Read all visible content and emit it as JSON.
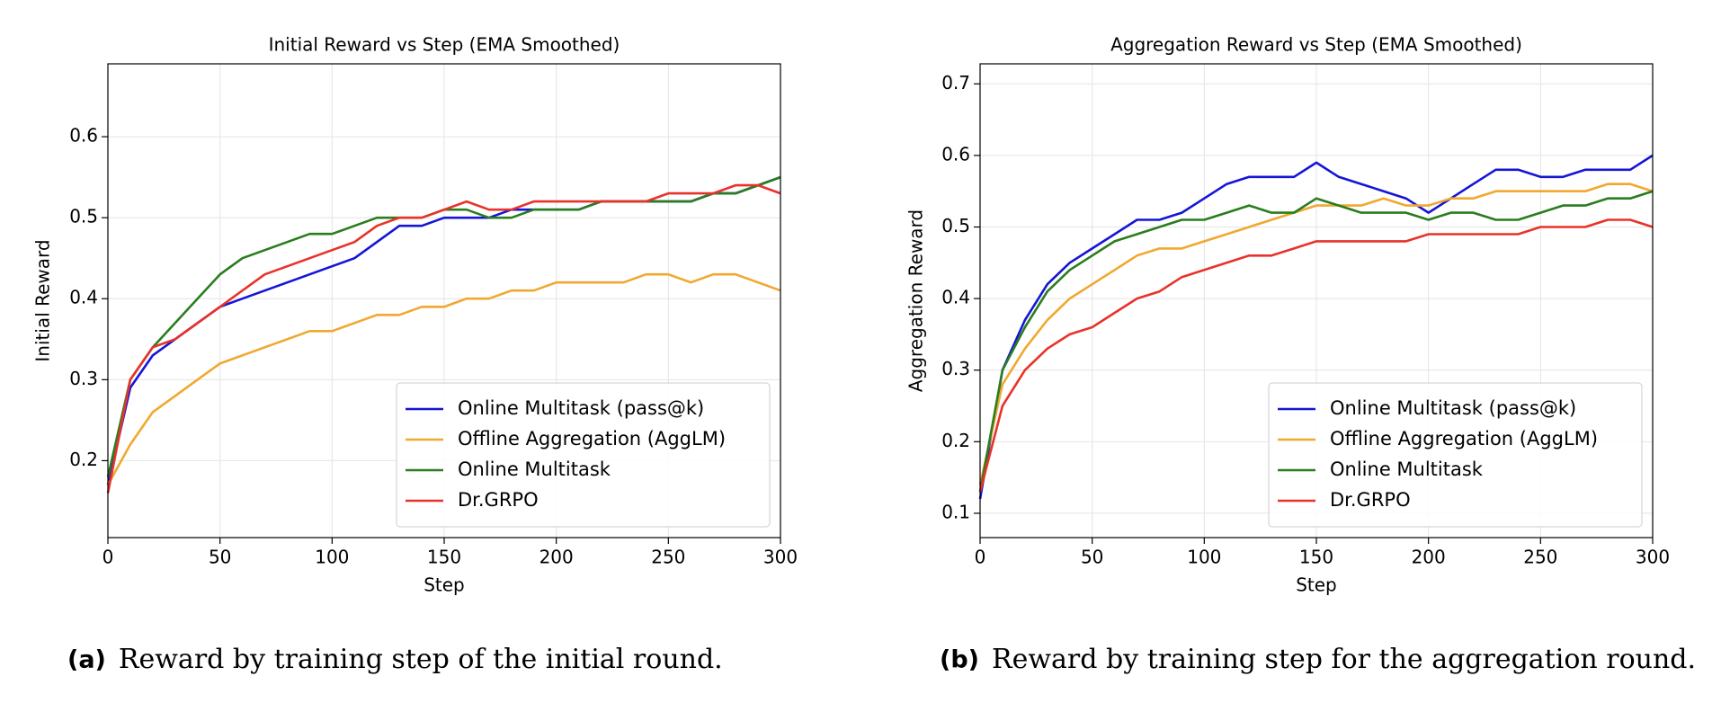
{
  "chart_data": [
    {
      "type": "line",
      "title": "Initial Reward vs Step (EMA Smoothed)",
      "xlabel": "Step",
      "ylabel": "Initial Reward",
      "x": [
        0,
        10,
        20,
        30,
        40,
        50,
        60,
        70,
        80,
        90,
        100,
        110,
        120,
        130,
        140,
        150,
        160,
        170,
        180,
        190,
        200,
        210,
        220,
        230,
        240,
        250,
        260,
        270,
        280,
        290,
        300
      ],
      "xlim": [
        0,
        300
      ],
      "xticks": [
        0,
        50,
        100,
        150,
        200,
        250,
        300
      ],
      "ylim": [
        0.105,
        0.69
      ],
      "yticks": [
        0.2,
        0.3,
        0.4,
        0.5,
        0.6
      ],
      "grid": true,
      "legend": "lower right",
      "series": [
        {
          "name": "Online Multitask (pass@k)",
          "color": "#1515d6",
          "values": [
            0.17,
            0.29,
            0.33,
            0.35,
            0.37,
            0.39,
            0.4,
            0.41,
            0.42,
            0.43,
            0.44,
            0.45,
            0.47,
            0.49,
            0.49,
            0.5,
            0.5,
            0.5,
            0.51,
            0.51,
            0.51,
            0.51,
            0.52,
            0.52,
            0.52,
            0.52,
            0.52,
            0.53,
            0.53,
            0.54,
            0.55
          ]
        },
        {
          "name": "Offline Aggregation (AggLM)",
          "color": "#f0a830",
          "values": [
            0.17,
            0.22,
            0.26,
            0.28,
            0.3,
            0.32,
            0.33,
            0.34,
            0.35,
            0.36,
            0.36,
            0.37,
            0.38,
            0.38,
            0.39,
            0.39,
            0.4,
            0.4,
            0.41,
            0.41,
            0.42,
            0.42,
            0.42,
            0.42,
            0.43,
            0.43,
            0.42,
            0.43,
            0.43,
            0.42,
            0.41
          ]
        },
        {
          "name": "Online Multitask",
          "color": "#2a7d1e",
          "values": [
            0.18,
            0.3,
            0.34,
            0.37,
            0.4,
            0.43,
            0.45,
            0.46,
            0.47,
            0.48,
            0.48,
            0.49,
            0.5,
            0.5,
            0.5,
            0.51,
            0.51,
            0.5,
            0.5,
            0.51,
            0.51,
            0.51,
            0.52,
            0.52,
            0.52,
            0.52,
            0.52,
            0.53,
            0.53,
            0.54,
            0.55
          ]
        },
        {
          "name": "Dr.GRPO",
          "color": "#e8332a",
          "values": [
            0.16,
            0.3,
            0.34,
            0.35,
            0.37,
            0.39,
            0.41,
            0.43,
            0.44,
            0.45,
            0.46,
            0.47,
            0.49,
            0.5,
            0.5,
            0.51,
            0.52,
            0.51,
            0.51,
            0.52,
            0.52,
            0.52,
            0.52,
            0.52,
            0.52,
            0.53,
            0.53,
            0.53,
            0.54,
            0.54,
            0.53
          ]
        }
      ],
      "caption": {
        "label": "(a)",
        "text": "Reward by training step of the initial round."
      }
    },
    {
      "type": "line",
      "title": "Aggregation Reward vs Step (EMA Smoothed)",
      "xlabel": "Step",
      "ylabel": "Aggregation Reward",
      "x": [
        0,
        10,
        20,
        30,
        40,
        50,
        60,
        70,
        80,
        90,
        100,
        110,
        120,
        130,
        140,
        150,
        160,
        170,
        180,
        190,
        200,
        210,
        220,
        230,
        240,
        250,
        260,
        270,
        280,
        290,
        300
      ],
      "xlim": [
        0,
        300
      ],
      "xticks": [
        0,
        50,
        100,
        150,
        200,
        250,
        300
      ],
      "ylim": [
        0.066,
        0.728
      ],
      "yticks": [
        0.1,
        0.2,
        0.3,
        0.4,
        0.5,
        0.6,
        0.7
      ],
      "grid": true,
      "legend": "lower right",
      "series": [
        {
          "name": "Online Multitask (pass@k)",
          "color": "#1515d6",
          "values": [
            0.12,
            0.3,
            0.37,
            0.42,
            0.45,
            0.47,
            0.49,
            0.51,
            0.51,
            0.52,
            0.54,
            0.56,
            0.57,
            0.57,
            0.57,
            0.59,
            0.57,
            0.56,
            0.55,
            0.54,
            0.52,
            0.54,
            0.56,
            0.58,
            0.58,
            0.57,
            0.57,
            0.58,
            0.58,
            0.58,
            0.6
          ]
        },
        {
          "name": "Offline Aggregation (AggLM)",
          "color": "#f0a830",
          "values": [
            0.14,
            0.28,
            0.33,
            0.37,
            0.4,
            0.42,
            0.44,
            0.46,
            0.47,
            0.47,
            0.48,
            0.49,
            0.5,
            0.51,
            0.52,
            0.53,
            0.53,
            0.53,
            0.54,
            0.53,
            0.53,
            0.54,
            0.54,
            0.55,
            0.55,
            0.55,
            0.55,
            0.55,
            0.56,
            0.56,
            0.55
          ]
        },
        {
          "name": "Online Multitask",
          "color": "#2a7d1e",
          "values": [
            0.13,
            0.3,
            0.36,
            0.41,
            0.44,
            0.46,
            0.48,
            0.49,
            0.5,
            0.51,
            0.51,
            0.52,
            0.53,
            0.52,
            0.52,
            0.54,
            0.53,
            0.52,
            0.52,
            0.52,
            0.51,
            0.52,
            0.52,
            0.51,
            0.51,
            0.52,
            0.53,
            0.53,
            0.54,
            0.54,
            0.55
          ]
        },
        {
          "name": "Dr.GRPO",
          "color": "#e8332a",
          "values": [
            0.13,
            0.25,
            0.3,
            0.33,
            0.35,
            0.36,
            0.38,
            0.4,
            0.41,
            0.43,
            0.44,
            0.45,
            0.46,
            0.46,
            0.47,
            0.48,
            0.48,
            0.48,
            0.48,
            0.48,
            0.49,
            0.49,
            0.49,
            0.49,
            0.49,
            0.5,
            0.5,
            0.5,
            0.51,
            0.51,
            0.5
          ]
        }
      ],
      "caption": {
        "label": "(b)",
        "text": "Reward by training step for the aggregation round."
      }
    }
  ]
}
